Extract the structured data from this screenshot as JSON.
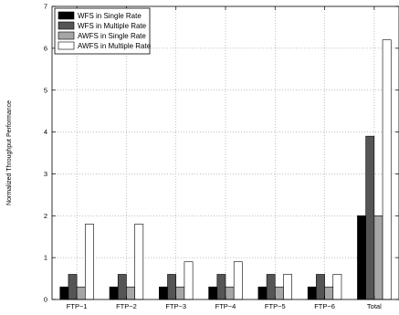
{
  "chart_data": {
    "type": "bar",
    "title": "",
    "xlabel": "",
    "ylabel": "Normalized Throughput Performance",
    "categories": [
      "FTP−1",
      "FTP−2",
      "FTP−3",
      "FTP−4",
      "FTP−5",
      "FTP−6",
      "Total"
    ],
    "ylim": [
      0,
      7
    ],
    "yticks": [
      "0",
      "1",
      "2",
      "3",
      "4",
      "5",
      "6",
      "7"
    ],
    "grid": true,
    "legend_position": "top-left",
    "series": [
      {
        "name": "WFS in Single Rate",
        "color": "#000000",
        "values": [
          0.3,
          0.3,
          0.3,
          0.3,
          0.3,
          0.3,
          2.0
        ]
      },
      {
        "name": "WFS in Multiple Rate",
        "color": "#555555",
        "values": [
          0.6,
          0.6,
          0.6,
          0.6,
          0.6,
          0.6,
          3.9
        ]
      },
      {
        "name": "AWFS in Single Rate",
        "color": "#a6a6a6",
        "values": [
          0.3,
          0.3,
          0.3,
          0.3,
          0.3,
          0.3,
          2.0
        ]
      },
      {
        "name": "AWFS in Multiple Rate",
        "color": "#ffffff",
        "values": [
          1.8,
          1.8,
          0.9,
          0.9,
          0.6,
          0.6,
          6.2
        ]
      }
    ]
  }
}
